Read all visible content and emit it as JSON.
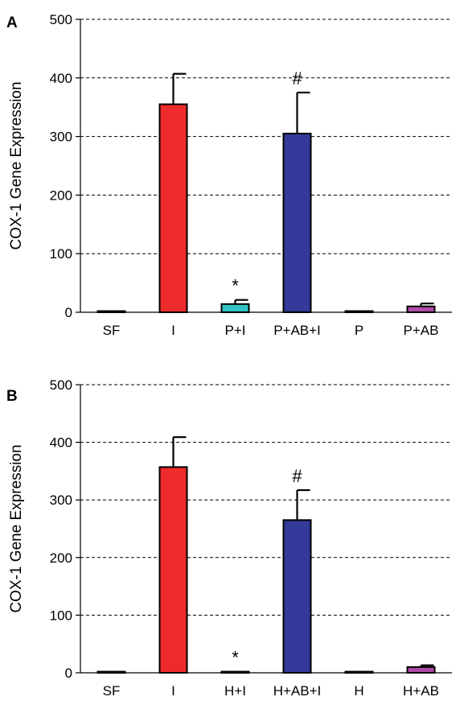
{
  "chart_data": [
    {
      "type": "bar",
      "panel_label": "A",
      "ylabel": "COX-1 Gene Expression",
      "ylim": [
        0,
        500
      ],
      "yticks": [
        "0",
        "100",
        "200",
        "300",
        "400",
        "500"
      ],
      "grid": true,
      "categories": [
        "SF",
        "I",
        "P+I",
        "P+AB+I",
        "P",
        "P+AB"
      ],
      "values": [
        2,
        355,
        14,
        305,
        2,
        10
      ],
      "errors": [
        0,
        52,
        7,
        70,
        0,
        5
      ],
      "annotations": [
        "",
        "",
        "*",
        "#",
        "",
        ""
      ],
      "colors": [
        "#cfcfcf",
        "#ee2b2b",
        "#33c3c3",
        "#333a99",
        "#d0d0d0",
        "#b04aa8"
      ]
    },
    {
      "type": "bar",
      "panel_label": "B",
      "ylabel": "COX-1 Gene Expression",
      "ylim": [
        0,
        500
      ],
      "yticks": [
        "0",
        "100",
        "200",
        "300",
        "400",
        "500"
      ],
      "grid": true,
      "categories": [
        "SF",
        "I",
        "H+I",
        "H+AB+I",
        "H",
        "H+AB"
      ],
      "values": [
        2,
        357,
        2,
        265,
        2,
        10
      ],
      "errors": [
        0,
        52,
        0,
        52,
        0,
        3
      ],
      "annotations": [
        "",
        "",
        "*",
        "#",
        "",
        ""
      ],
      "colors": [
        "#cfcfcf",
        "#ee2b2b",
        "#cfcfcf",
        "#333a99",
        "#d0d0d0",
        "#b04aa8"
      ]
    }
  ]
}
